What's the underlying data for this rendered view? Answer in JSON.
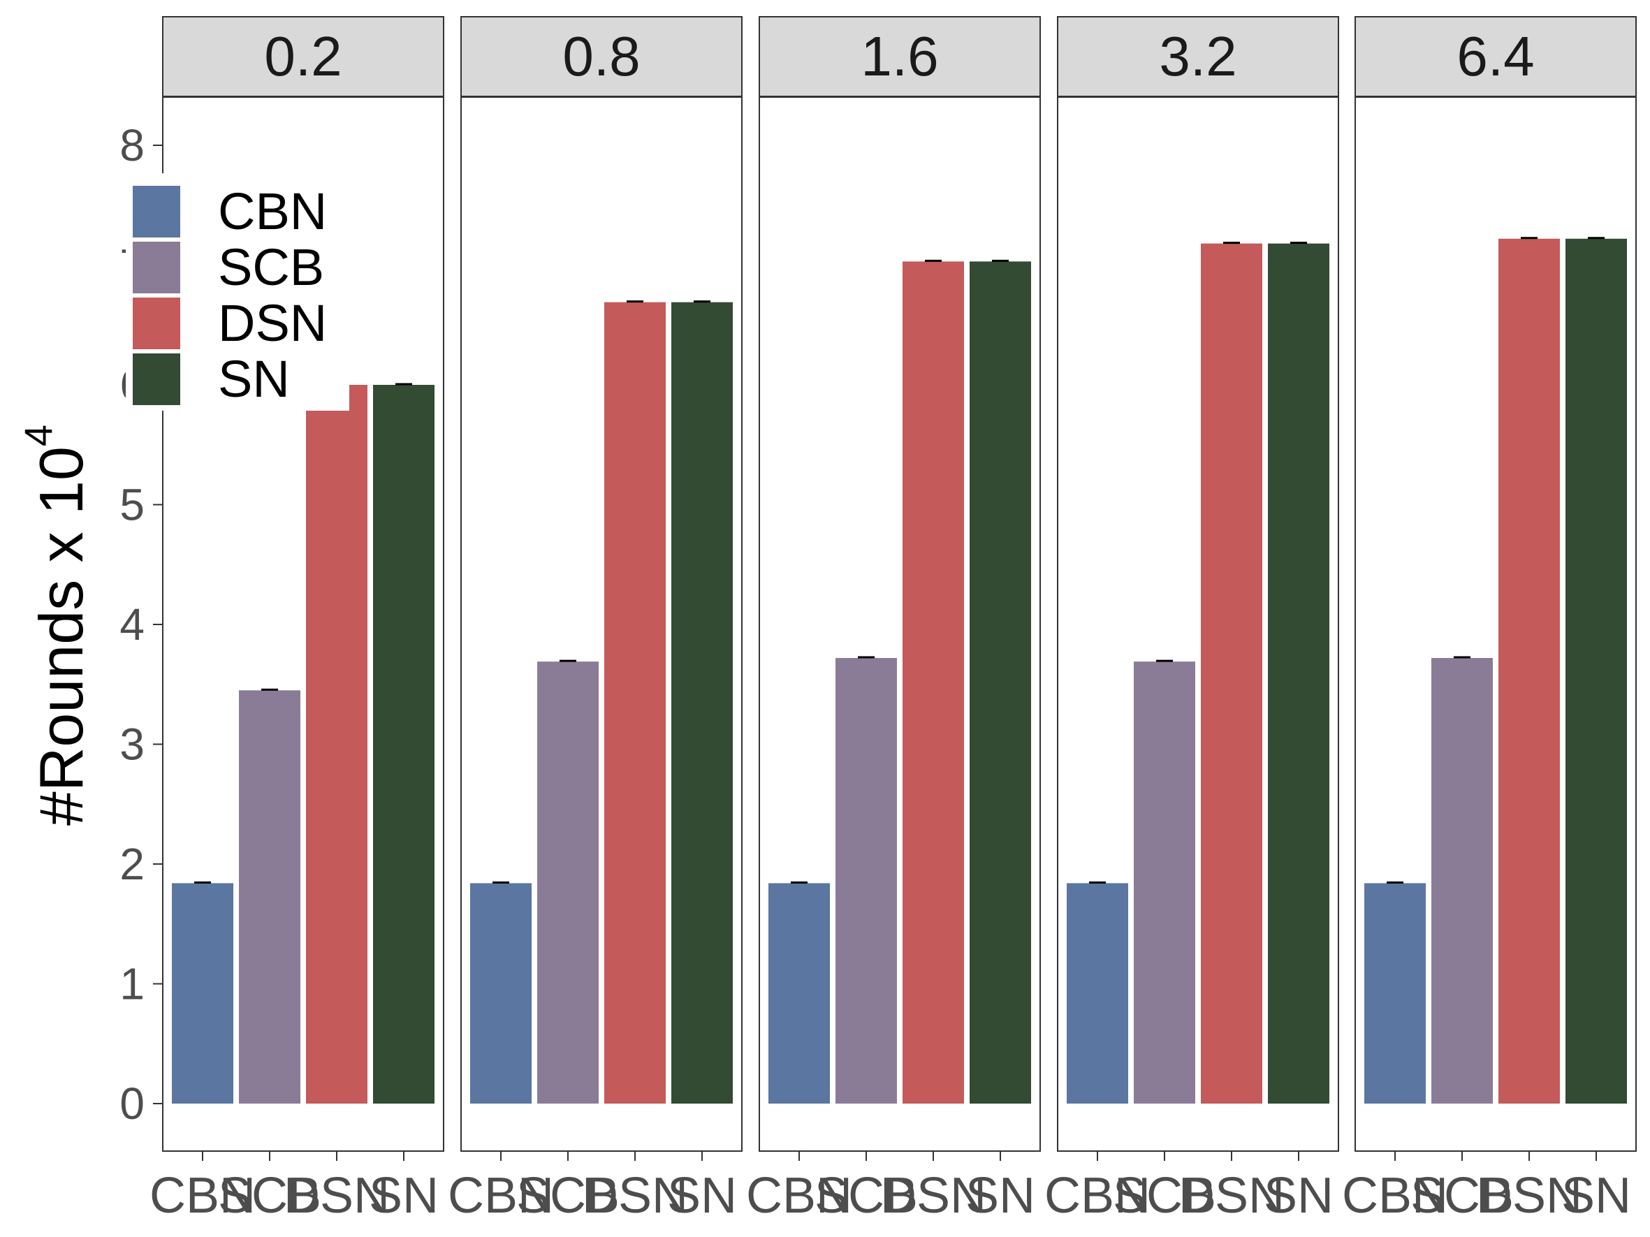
{
  "chart_data": {
    "type": "bar",
    "ylabel_base": "#Rounds x 10",
    "ylabel_exp": "4",
    "yticks": [
      "0",
      "1",
      "2",
      "3",
      "4",
      "5",
      "6",
      "7",
      "8"
    ],
    "ylim": [
      0,
      8
    ],
    "categories": [
      "CBN",
      "SCB",
      "DSN",
      "SN"
    ],
    "colors": {
      "CBN": "#5b76a0",
      "SCB": "#8a7c96",
      "DSN": "#c45a5a",
      "SN": "#334a33"
    },
    "legend": {
      "position": "top-left",
      "entries": [
        "CBN",
        "SCB",
        "DSN",
        "SN"
      ]
    },
    "panels": [
      {
        "label": "0.2",
        "values": [
          1.84,
          3.45,
          6.0,
          6.0
        ]
      },
      {
        "label": "0.8",
        "values": [
          1.84,
          3.69,
          6.69,
          6.69
        ]
      },
      {
        "label": "1.6",
        "values": [
          1.84,
          3.72,
          7.03,
          7.03
        ]
      },
      {
        "label": "3.2",
        "values": [
          1.84,
          3.69,
          7.18,
          7.18
        ]
      },
      {
        "label": "6.4",
        "values": [
          1.84,
          3.72,
          7.22,
          7.22
        ]
      }
    ]
  }
}
